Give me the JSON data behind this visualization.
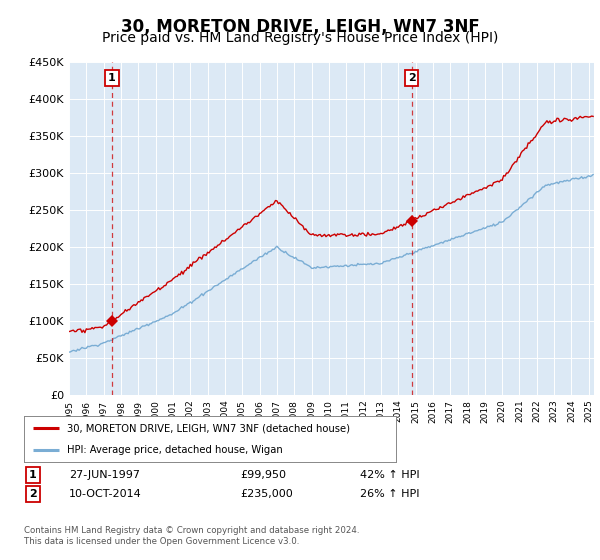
{
  "title": "30, MORETON DRIVE, LEIGH, WN7 3NF",
  "subtitle": "Price paid vs. HM Land Registry's House Price Index (HPI)",
  "legend_line1": "30, MORETON DRIVE, LEIGH, WN7 3NF (detached house)",
  "legend_line2": "HPI: Average price, detached house, Wigan",
  "transaction1_label": "1",
  "transaction1_date": "27-JUN-1997",
  "transaction1_price": "£99,950",
  "transaction1_hpi": "42% ↑ HPI",
  "transaction1_year": 1997.48,
  "transaction1_value": 99950,
  "transaction2_label": "2",
  "transaction2_date": "10-OCT-2014",
  "transaction2_price": "£235,000",
  "transaction2_hpi": "26% ↑ HPI",
  "transaction2_year": 2014.77,
  "transaction2_value": 235000,
  "xmin": 1995,
  "xmax": 2025.3,
  "ymin": 0,
  "ymax": 450000,
  "yticks": [
    0,
    50000,
    100000,
    150000,
    200000,
    250000,
    300000,
    350000,
    400000,
    450000
  ],
  "ytick_labels": [
    "£0",
    "£50K",
    "£100K",
    "£150K",
    "£200K",
    "£250K",
    "£300K",
    "£350K",
    "£400K",
    "£450K"
  ],
  "plot_bg_color": "#dce9f5",
  "red_line_color": "#cc0000",
  "blue_line_color": "#7aadd4",
  "grid_color": "#ffffff",
  "footer_text": "Contains HM Land Registry data © Crown copyright and database right 2024.\nThis data is licensed under the Open Government Licence v3.0.",
  "title_fontsize": 12,
  "subtitle_fontsize": 10
}
